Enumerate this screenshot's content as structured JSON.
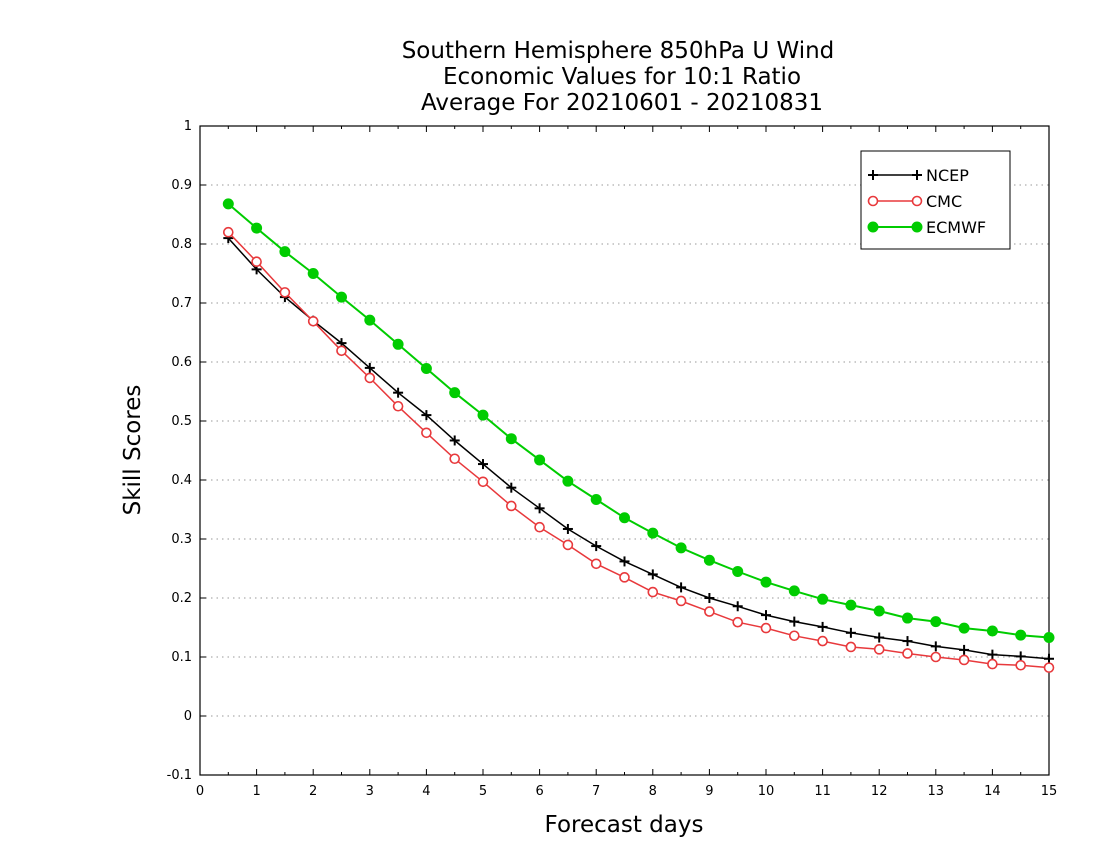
{
  "chart_data": {
    "type": "line",
    "title_lines": [
      "Southern Hemisphere 850hPa U Wind",
      "Economic Values for 10:1 Ratio",
      "Average For 20210601 - 20210831"
    ],
    "xlabel": "Forecast days",
    "ylabel": "Skill Scores",
    "xlim": [
      0,
      15
    ],
    "ylim": [
      -0.1,
      1
    ],
    "xticks": [
      "0",
      "1",
      "2",
      "3",
      "4",
      "5",
      "6",
      "7",
      "8",
      "9",
      "10",
      "11",
      "12",
      "13",
      "14",
      "15"
    ],
    "yticks": [
      "-0.1",
      "0",
      "0.1",
      "0.2",
      "0.3",
      "0.4",
      "0.5",
      "0.6",
      "0.7",
      "0.8",
      "0.9",
      "1"
    ],
    "grid": "horizontal dotted",
    "legend_position": "top-right",
    "x": [
      0.5,
      1,
      1.5,
      2,
      2.5,
      3,
      3.5,
      4,
      4.5,
      5,
      5.5,
      6,
      6.5,
      7,
      7.5,
      8,
      8.5,
      9,
      9.5,
      10,
      10.5,
      11,
      11.5,
      12,
      12.5,
      13,
      13.5,
      14,
      14.5,
      15
    ],
    "series": [
      {
        "name": "NCEP",
        "color": "#000000",
        "marker": "plus",
        "values": [
          0.81,
          0.757,
          0.71,
          0.67,
          0.632,
          0.59,
          0.548,
          0.51,
          0.467,
          0.427,
          0.387,
          0.352,
          0.317,
          0.288,
          0.262,
          0.24,
          0.218,
          0.2,
          0.186,
          0.171,
          0.16,
          0.151,
          0.141,
          0.133,
          0.127,
          0.118,
          0.112,
          0.104,
          0.101,
          0.097
        ]
      },
      {
        "name": "CMC",
        "color": "#e8393c",
        "marker": "open-circle",
        "values": [
          0.82,
          0.77,
          0.718,
          0.669,
          0.619,
          0.573,
          0.525,
          0.48,
          0.436,
          0.397,
          0.356,
          0.32,
          0.29,
          0.258,
          0.235,
          0.21,
          0.195,
          0.177,
          0.159,
          0.149,
          0.136,
          0.127,
          0.117,
          0.113,
          0.106,
          0.1,
          0.095,
          0.088,
          0.086,
          0.082
        ]
      },
      {
        "name": "ECMWF",
        "color": "#00cc00",
        "marker": "filled-circle",
        "values": [
          0.868,
          0.827,
          0.787,
          0.75,
          0.71,
          0.671,
          0.63,
          0.589,
          0.548,
          0.51,
          0.47,
          0.434,
          0.398,
          0.367,
          0.336,
          0.31,
          0.285,
          0.264,
          0.245,
          0.227,
          0.212,
          0.198,
          0.188,
          0.178,
          0.166,
          0.16,
          0.149,
          0.144,
          0.137,
          0.133
        ]
      }
    ]
  }
}
